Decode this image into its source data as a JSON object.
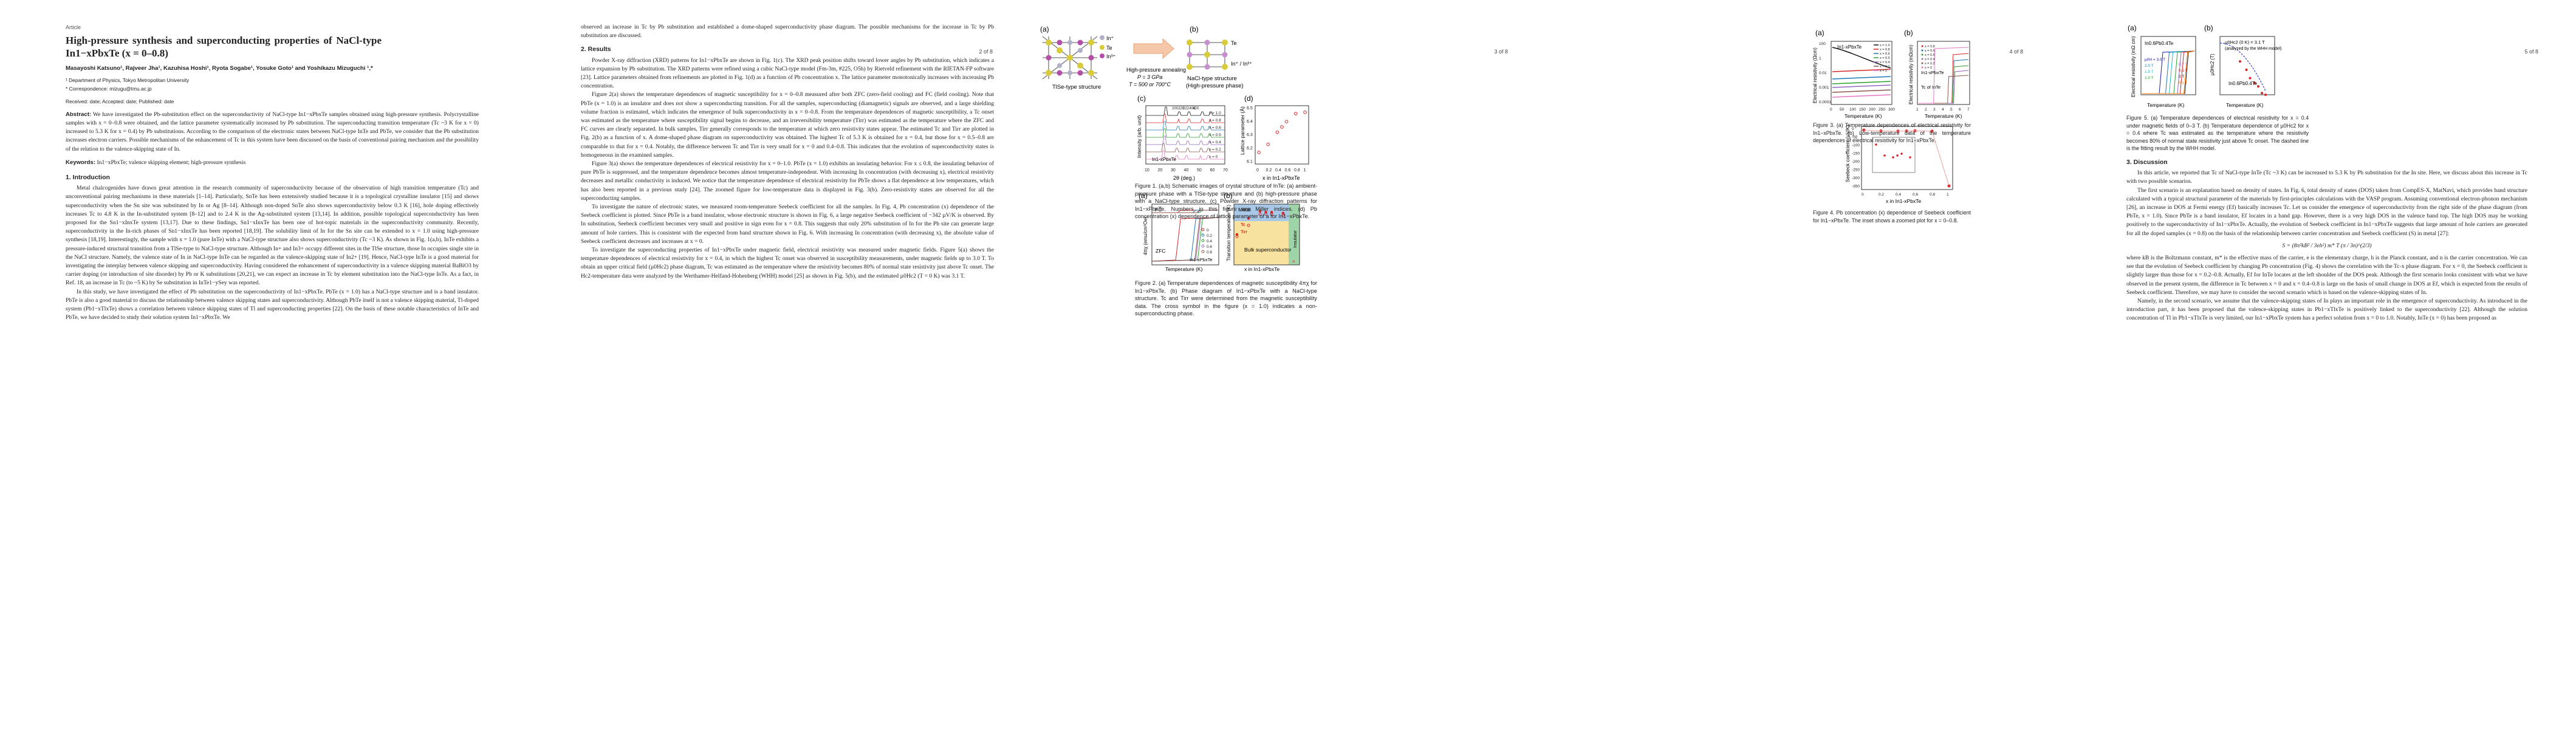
{
  "page1": {
    "label": "Article",
    "title": "High-pressure synthesis and superconducting properties of NaCl-type In1−xPbxTe (x = 0–0.8)",
    "authors": "Masayoshi Katsuno¹, Rajveer Jha¹, Kazuhisa Hoshi¹, Ryota Sogabe¹, Yosuke Goto¹ and Yoshikazu Mizuguchi ¹,*",
    "affil1": "¹  Department of Physics, Tokyo Metropolitan University",
    "affil2": "*  Correspondence: mizugu@tmu.ac.jp",
    "dates": "Received: date; Accepted: date; Published: date",
    "abstract_label": "Abstract:",
    "abstract": "We have investigated the Pb-substitution effect on the superconductivity of NaCl-type In1−xPbxTe samples obtained using high-pressure synthesis. Polycrystalline samples with x = 0–0.8 were obtained, and the lattice parameter systematically increased by Pb substitution. The superconducting transition temperature (Tc ~3 K for x = 0) increased to 5.3 K for x = 0.4) by Pb substitutions. According to the comparison of the electronic states between NaCl-type InTe and PbTe, we consider that the Pb substitution increases electron carriers. Possible mechanisms of the enhancement of Tc in this system have been discussed on the basis of conventional pairing mechanism and the possibility of the relation to the valence-skipping state of In.",
    "keywords_label": "Keywords:",
    "keywords": "In1−xPbxTe; valence skipping element; high-pressure synthesis",
    "section": "1. Introduction",
    "intro1": "Metal chalcogenides have drawn great attention in the research community of superconductivity because of the observation of high transition temperature (Tc) and unconventional pairing mechanisms in these materials [1–14]. Particularly, SnTe has been extensively studied because it is a topological crystalline insulator [15] and shows superconductivity when the Sn site was substituted by In or Ag [8–14]. Although non-doped SnTe also shows superconductivity below 0.3 K [16], hole doping effectively increases Tc to 4.8 K in the In-substituted system [8–12] and to 2.4 K in the Ag-substituted system [13,14]. In addition, possible topological superconductivity has been proposed for the Sn1−xInxTe system [13,17]. Due to these findings, Sn1−xInxTe has been one of hot-topic materials in the superconductivity community. Recently, superconductivity in the In-rich phases of Sn1−xInxTe has been reported [18,19]. The solubility limit of In for the Sn site can be extended to x = 1.0 using high-pressure synthesis [18,19]. Interestingly, the sample with x = 1.0 (pure InTe) with a NaCl-type structure also shows superconductivity (Tc ~3 K). As shown in Fig. 1(a,b), InTe exhibits a pressure-induced structural transition from a TlSe-type to NaCl-type structure. Although In+ and In3+ occupy different sites in the TlSe structure, those In occupies single site in the NaCl structure. Namely, the valence state of In in NaCl-type InTe can be regarded as the valence-skipping state of In2+ [19]. Hence, NaCl-type InTe is a good material for investigating the interplay between valence skipping and superconductivity. Having considered the enhancement of superconductivity in a valence skipping material BaBiO3 by carrier doping (or introduction of site disorder) by Pb or K substitutions [20,21], we can expect an increase in Tc by element substitution into the NaCl-type InTe. As a fact, in Ref. 18, an increase in Tc (to ~5 K) by Se substitution in InTe1−ySey was reported.",
    "intro2": "In this study, we have investigated the effect of Pb substitution on the superconductivity of In1−xPbxTe. PbTe (x = 1.0) has a NaCl-type structure and is a band insulator. PbTe is also a good material to discuss the relationship between valence skipping states and superconductivity. Although PbTe itself is not a valence skipping material, Tl-doped system (Pb1−xTlxTe) shows a correlation between valence skipping states of Tl and superconducting properties [22]. On the basis of these notable characteristics of InTe and PbTe, we have decided to study their solution system In1−xPbxTe. We"
  },
  "page2": {
    "page_number": "2 of 8",
    "p0": "observed an increase in Tc by Pb substitution and established a dome-shaped superconductivity phase diagram. The possible mechanisms for the increase in Tc by Pb substitution are discussed.",
    "section": "2. Results",
    "p1": "Powder X-ray diffraction (XRD) patterns for In1−xPbxTe are shown in Fig. 1(c). The XRD peak position shifts toward lower angles by Pb substitution, which indicates a lattice expansion by Pb substitution. The XRD patterns were refined using a cubic NaCl-type model (Fm-3m, #225, O5h) by Rietveld refinement with the RIETAN-FP software [23]. Lattice parameters obtained from refinements are plotted in Fig. 1(d) as a function of Pb concentration x. The lattice parameter monotonically increases with increasing Pb concentration.",
    "p2": "Figure 2(a) shows the temperature dependences of magnetic susceptibility for x = 0–0.8 measured after both ZFC (zero-field cooling) and FC (field cooling). Note that PbTe (x = 1.0) is an insulator and does not show a superconducting transition. For all the samples, superconducting (diamagnetic) signals are observed, and a large shielding volume fraction is estimated, which indicates the emergence of bulk superconductivity in x = 0–0.8. From the temperature dependences of magnetic susceptibility, a Tc onset was estimated as the temperature where susceptibility signal begins to decrease, and an irreversibility temperature (Tirr) was estimated as the temperature where the ZFC and FC curves are clearly separated. In bulk samples, Tirr generally corresponds to the temperature at which zero resistivity states appear. The estimated Tc and Tirr are plotted in Fig. 2(b) as a function of x. A dome-shaped phase diagram on superconductivity was obtained. The highest Tc of 5.3 K is obtained for x = 0.4, but those for x = 0.5–0.8 are comparable to that for x = 0.4. Notably, the difference between Tc and Tirr is very small for x = 0 and 0.4–0.8. This indicates that the evolution of superconductivity states is homogeneous in the examined samples.",
    "p3": "Figure 3(a) shows the temperature dependences of electrical resistivity for x = 0–1.0. PbTe (x = 1.0) exhibits an insulating behavior. For x ≤ 0.8, the insulating behavior of pure PbTe is suppressed, and the temperature dependence becomes almost temperature-independent. With increasing In concentration (with decreasing x), electrical resistivity decreases and metallic conductivity is induced. We notice that the temperature dependence of electrical resistivity for PbTe shows a flat dependence at low temperatures, which has also been reported in a previous study [24]. The zoomed figure for low-temperature data is displayed in Fig. 3(b). Zero-resistivity states are observed for all the superconducting samples.",
    "p4": "To investigate the nature of electronic states, we measured room-temperature Seebeck coefficient for all the samples. In Fig. 4, Pb concentration (x) dependence of the Seebeck coefficient is plotted. Since PbTe is a band insulator, whose electronic structure is shown in Fig. 6, a large negative Seebeck coefficient of −342 µV/K is observed. By In substitution, Seebeck coefficient becomes very small and positive in sign even for x = 0.8. This suggests that only 20% substitution of In for the Pb site can generate large amount of hole carriers. This is consistent with the expected from band structure shown in Fig. 6. With increasing In concentration (with decreasing x), the absolute value of Seebeck coefficient decreases and increases at x = 0.",
    "p5": "To investigate the superconducting properties of In1−xPbxTe under magnetic field, electrical resistivity was measured under magnetic fields. Figure 5(a) shows the temperature dependences of electrical resistivity for x = 0.4, in which the highest Tc onset was observed in susceptibility measurements, under magnetic fields up to 3.0 T. To obtain an upper critical field (µ0Hc2) phase diagram, Tc was estimated as the temperature where the resistivity becomes 80% of normal state resistivity just above Tc onset. The Hc2-temperature data were analyzed by the Werthamer-Helfand-Hohenberg (WHH) model [25] as shown in Fig. 5(b), and the estimated µ0Hc2 (T = 0 K) was 3.1 T."
  },
  "page3": {
    "page_number": "3 of 8",
    "fig1": {
      "panel_a": "(a)",
      "panel_b": "(b)",
      "panel_c": "(c)",
      "panel_d": "(d)",
      "in_plus": "In⁺",
      "te": "Te",
      "in_3plus": "In³⁺",
      "tlse_label": "TlSe-type structure",
      "te_b": "Te",
      "in_b": "In⁺ / In³⁺",
      "nacl_label1": "NaCl-type structure",
      "nacl_label2": "(High-pressure phase)",
      "arrow_text1": "High-pressure annealing",
      "arrow_text2": "P = 3 GPa",
      "arrow_text3": "T = 500 or 700°C",
      "xrd_ylabel": "Intensity (arb. unit)",
      "xrd_xlabel": "2θ (deg.)",
      "xrd_sample": "In1-xPbxTe",
      "xrd_xticks": [
        "10",
        "20",
        "30",
        "40",
        "50",
        "60",
        "70"
      ],
      "xrd_curves": [
        "x = 1.0",
        "x = 0.8",
        "x = 0.6",
        "x = 0.5",
        "x = 0.4",
        "x = 0.2",
        "x = 0"
      ],
      "xrd_peaks": [
        "200",
        "220",
        "222",
        "400",
        "420"
      ],
      "lat_ylabel": "Lattice parameter (Å)",
      "lat_xlabel": "x in In1-xPbxTe",
      "caption": "Figure 1. (a,b) Schematic images of crystal structure of InTe: (a) ambient-pressure phase with a TlSe-type structure and (b) high-pressure phase with a NaCl-type structure. (c) Powder X-ray diffraction patterns for In1−xPbxTe. Numbers in this figure are Miller indices. (d) Pb concentration (x) dependence of lattice parameter of a for In1−xPbxTe."
    },
    "fig2": {
      "panel_a": "(a)",
      "panel_b": "(b)",
      "fc": "FC",
      "zfc": "ZFC",
      "sus_ylabel": "4πχ (emu/cm³Oe)",
      "sus_xlabel": "Temperature (K)",
      "sus_sample": "In1-xPbxTe",
      "sus_legend": [
        "0",
        "0.2",
        "0.4",
        "0.6",
        "0.8"
      ],
      "phase_ylabel": "Transition temperature (K)",
      "phase_xlabel": "x in In1-xPbxTe",
      "metal": "Metal",
      "bulk_sc": "Bulk superconductor",
      "insulator": "Insulator",
      "tc": "Tc",
      "tirr": "Tirr",
      "caption": "Figure 2. (a) Temperature dependences of magnetic susceptibility 4πχ for In1−xPbxTe. (b) Phase diagram of In1−xPbxTe with a NaCl-type structure. Tc and Tirr were determined from the magnetic susceptibility data. The cross symbol in the figure (x = 1.0) indicates a non-superconducting phase."
    }
  },
  "page4": {
    "page_number": "4 of 8",
    "fig3": {
      "panel_a": "(a)",
      "panel_b": "(b)",
      "ylabel": "Electrical resistivity (Ωcm)",
      "xlabel": "Temperature (K)",
      "sample": "In1-xPbxTe",
      "legend": [
        "x = 1.0",
        "x = 0.8",
        "x = 0.6",
        "x = 0.5",
        "x = 0.4",
        "x = 0.2",
        "x = 0"
      ],
      "yticks": [
        "100",
        "1",
        "0.01",
        "0.001",
        "0.0001"
      ],
      "xticks": [
        "0",
        "50",
        "100",
        "150",
        "200",
        "250",
        "300"
      ],
      "b_ylabel": "Electrical resistivity (mΩcm)",
      "b_xlabel": "Temperature (K)",
      "b_sample": "In1-xPbxTe",
      "b_tc_label": "Tc of InTe",
      "b_legend": [
        "x = 0.8",
        "x = 0.6",
        "x = 0.5",
        "x = 0.4",
        "x = 0.2",
        "x = 0"
      ],
      "b_xticks": [
        "1",
        "2",
        "3",
        "4",
        "5",
        "6",
        "7"
      ],
      "caption": "Figure 3. (a) Temperature dependences of electrical resistivity for In1−xPbxTe. (b) Low-temperature data of the temperature dependences of electrical resistivity for In1−xPbxTe."
    },
    "fig4": {
      "ylabel": "Seebeck coefficient (µV/K)",
      "xlabel": "x in In1-xPbxTe",
      "yticks": [
        "0",
        "-50",
        "-100",
        "-150",
        "-200",
        "-250",
        "-300",
        "-350"
      ],
      "xticks": [
        "0",
        "0.2",
        "0.4",
        "0.6",
        "0.8",
        "1"
      ],
      "caption": "Figure 4. Pb concentration (x) dependence of Seebeck coefficient for In1−xPbxTe. The inset shows a zoomed plot for x = 0–0.8."
    }
  },
  "page5": {
    "page_number": "5 of 8",
    "fig5": {
      "panel_a": "(a)",
      "panel_b": "(b)",
      "sample_a": "In0.6Pb0.4Te",
      "ylabel": "Electrical resistivity (mΩ cm)",
      "xlabel": "Temperature (K)",
      "field_labels": [
        "µ0H = 3.0 T",
        "2.0 T",
        "1.5 T",
        "1.0 T",
        "0.7 T",
        "0.5 T",
        "0 T",
        "0.1 T"
      ],
      "b_title1": "µ0Hc2 (0 K) = 3.1 T",
      "b_title2": "(analyzed by the WHH model)",
      "b_ylabel": "µ0Hc2 (T)",
      "b_sample": "In0.6Pb0.4Te",
      "b_xlabel": "Temperature (K)",
      "caption": "Figure 5. (a) Temperature dependences of electrical resistivity for x = 0.4 under magnetic fields of 0–3 T. (b) Temperature dependence of µ0Hc2 for x = 0.4 where Tc was estimated as the temperature where the resistivity becomes 80% of normal state resistivity just above Tc onset. The dashed line is the fitting result by the WHH model."
    },
    "section": "3. Discussion",
    "d1": "In this article, we reported that Tc of NaCl-type InTe (Tc ~3 K) can be increased to 5.3 K by Pb substitution for the In site. Here, we discuss about this increase in Tc with two possible scenarios.",
    "d2": "The first scenario is an explanation based on density of states. In Fig. 6, total density of states (DOS) taken from CompES-X, MatNavi, which provides band structure calculated with a typical structural parameter of the materials by first-principles calculations with the VASP program. Assuming conventional electron-phonon mechanism [26], an increase in DOS at Fermi energy (Ef) basically increases Tc. Let us consider the emergence of superconductivity from the right side of the phase diagram (from PbTe, x = 1.0). Since PbTe is a band insulator, Ef locates in a band gap. However, there is a very high DOS in the valence band top. The high DOS may be working positively to the superconductivity of In1−xPbxTe. Actually, the evolution of Seebeck coefficient in In1−xPbxTe suggests that large amount of hole carriers are generated for all the doped samples (x = 0.8) on the basis of the relationship between carrier concentration and Seebeck coefficient (S) in metal [27]:",
    "formula": "S = (8π²kB² / 3eh²) m* T (π / 3n)^(2/3)",
    "d3": "where kB is the Boltzmann constant, m* is the effective mass of the carrier, e is the elementary charge, h is the Planck constant, and n is the carrier concentration. We can see that the evolution of Seebeck coefficient by changing Pb concentration (Fig. 4) shows the correlation with the Tc-x phase diagram. For x = 0, the Seebeck coefficient is slightly larger than those for x = 0.2–0.8. Actually, Ef for InTe locates at the left shoulder of the DOS peak. Although the first scenario looks consistent with what we have observed in the present system, the difference in Tc between x = 0 and x = 0.4–0.8 is large on the basis of small change in DOS at Ef, which is expected from the results of Seebeck coefficient. Therefore, we may have to consider the second scenario which is based on the valence-skipping states of In.",
    "d4": "Namely, in the second scenario, we assume that the valence-skipping states of In plays an important role in the emergence of superconductivity. As introduced in the introduction part, it has been proposed that the valence-skipping states in Pb1−xTlxTe is positively linked to the superconductivity [22]. Although the solution concentration of Tl in Pb1−xTlxTe is very limited, our In1−xPbxTe system has a perfect solution from x = 0 to 1.0. Notably, InTe (x = 0) has been proposed as"
  }
}
